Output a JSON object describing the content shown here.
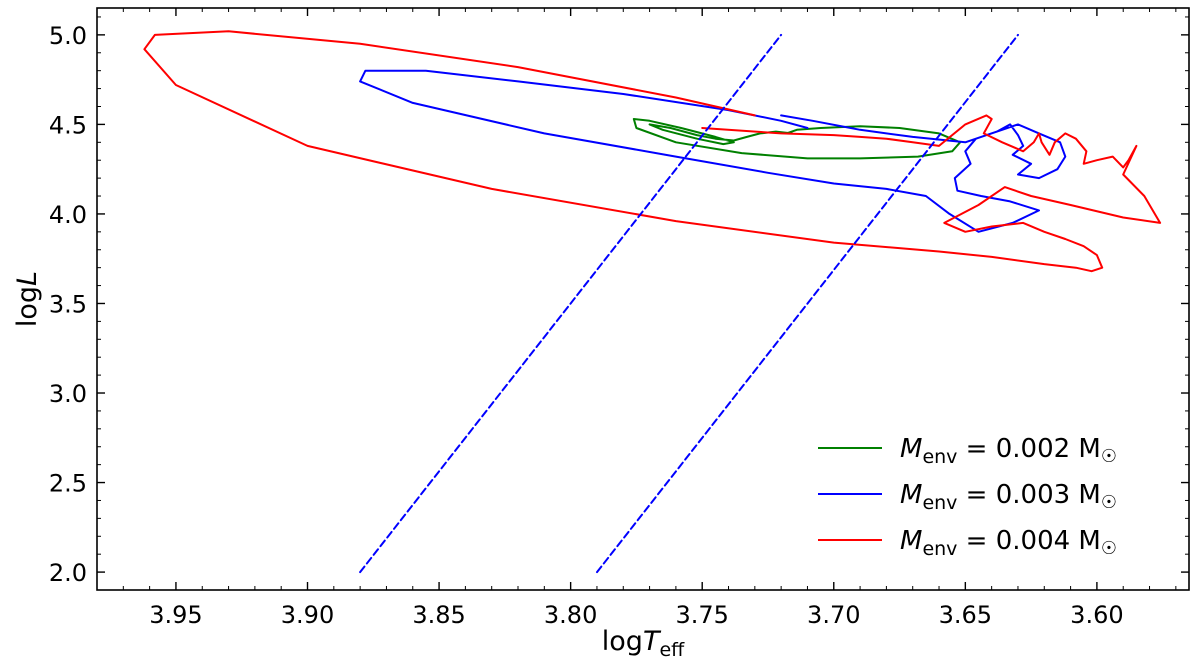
{
  "chart_data": {
    "type": "line",
    "xlabel": "log",
    "xlabel_var": "T",
    "xlabel_sub": "eff",
    "ylabel": "log",
    "ylabel_var": "L",
    "xlim": [
      3.98,
      3.565
    ],
    "ylim": [
      1.9,
      5.15
    ],
    "x_inverted": true,
    "x_ticks": [
      3.95,
      3.9,
      3.85,
      3.8,
      3.75,
      3.7,
      3.65,
      3.6
    ],
    "x_tick_labels": [
      "3.95",
      "3.90",
      "3.85",
      "3.80",
      "3.75",
      "3.70",
      "3.65",
      "3.60"
    ],
    "y_ticks": [
      2.0,
      2.5,
      3.0,
      3.5,
      4.0,
      4.5,
      5.0
    ],
    "y_tick_labels": [
      "2.0",
      "2.5",
      "3.0",
      "3.5",
      "4.0",
      "4.5",
      "5.0"
    ],
    "grid": false,
    "legend_placement": "bottom-right",
    "series": [
      {
        "name": "M_env = 0.002 M☉",
        "legend": {
          "var": "M",
          "sub": "env",
          "text": " = 0.002 M",
          "sym": "☉"
        },
        "color": "#008000",
        "style": "solid",
        "x": [
          3.718,
          3.714,
          3.705,
          3.69,
          3.675,
          3.66,
          3.652,
          3.655,
          3.668,
          3.69,
          3.71,
          3.735,
          3.76,
          3.775,
          3.776,
          3.77,
          3.758,
          3.745,
          3.738,
          3.742,
          3.752,
          3.765,
          3.77,
          3.762,
          3.752,
          3.745,
          3.738,
          3.733,
          3.728,
          3.722,
          3.716
        ],
        "y": [
          4.45,
          4.47,
          4.48,
          4.49,
          4.48,
          4.45,
          4.4,
          4.35,
          4.32,
          4.31,
          4.31,
          4.34,
          4.4,
          4.48,
          4.53,
          4.52,
          4.48,
          4.43,
          4.4,
          4.39,
          4.42,
          4.47,
          4.5,
          4.48,
          4.44,
          4.42,
          4.41,
          4.43,
          4.45,
          4.46,
          4.45
        ]
      },
      {
        "name": "M_env = 0.003 M☉",
        "legend": {
          "var": "M",
          "sub": "env",
          "text": " = 0.003 M",
          "sym": "☉"
        },
        "color": "#0000ff",
        "style": "solid",
        "x": [
          3.72,
          3.708,
          3.69,
          3.67,
          3.65,
          3.638,
          3.633,
          3.63,
          3.628,
          3.632,
          3.625,
          3.63,
          3.622,
          3.615,
          3.612,
          3.614,
          3.622,
          3.63,
          3.636,
          3.646,
          3.65,
          3.648,
          3.654,
          3.653,
          3.644,
          3.633,
          3.622,
          3.632,
          3.645,
          3.656,
          3.665,
          3.68,
          3.7,
          3.725,
          3.76,
          3.81,
          3.86,
          3.88,
          3.878,
          3.855,
          3.82,
          3.78,
          3.74,
          3.72,
          3.71
        ],
        "y": [
          4.55,
          4.52,
          4.47,
          4.43,
          4.4,
          4.46,
          4.5,
          4.44,
          4.38,
          4.33,
          4.28,
          4.22,
          4.2,
          4.25,
          4.32,
          4.4,
          4.45,
          4.5,
          4.47,
          4.42,
          4.35,
          4.28,
          4.2,
          4.13,
          4.1,
          4.07,
          4.02,
          3.95,
          3.9,
          4.0,
          4.1,
          4.14,
          4.17,
          4.23,
          4.32,
          4.45,
          4.62,
          4.74,
          4.8,
          4.8,
          4.74,
          4.67,
          4.58,
          4.52,
          4.48
        ]
      },
      {
        "name": "M_env = 0.004 M☉",
        "legend": {
          "var": "M",
          "sub": "env",
          "text": " = 0.004 M",
          "sym": "☉"
        },
        "color": "#ff0000",
        "style": "solid",
        "x": [
          3.75,
          3.72,
          3.7,
          3.69,
          3.68,
          3.67,
          3.66,
          3.65,
          3.642,
          3.64,
          3.643,
          3.636,
          3.628,
          3.624,
          3.622,
          3.621,
          3.618,
          3.616,
          3.612,
          3.608,
          3.604,
          3.605,
          3.6,
          3.594,
          3.59,
          3.588,
          3.585,
          3.59,
          3.582,
          3.578,
          3.576,
          3.59,
          3.61,
          3.625,
          3.635,
          3.645,
          3.658,
          3.65,
          3.64,
          3.628,
          3.62,
          3.612,
          3.605,
          3.6,
          3.598,
          3.602,
          3.608,
          3.62,
          3.64,
          3.66,
          3.7,
          3.76,
          3.83,
          3.9,
          3.95,
          3.962,
          3.958,
          3.93,
          3.88,
          3.82,
          3.76,
          3.73
        ],
        "y": [
          4.48,
          4.45,
          4.44,
          4.43,
          4.42,
          4.4,
          4.38,
          4.5,
          4.55,
          4.53,
          4.45,
          4.4,
          4.35,
          4.4,
          4.45,
          4.4,
          4.33,
          4.4,
          4.45,
          4.42,
          4.35,
          4.28,
          4.3,
          4.32,
          4.26,
          4.3,
          4.38,
          4.22,
          4.1,
          4.0,
          3.95,
          3.98,
          4.05,
          4.1,
          4.15,
          4.05,
          3.95,
          3.9,
          3.93,
          3.95,
          3.9,
          3.86,
          3.82,
          3.77,
          3.7,
          3.68,
          3.7,
          3.72,
          3.76,
          3.79,
          3.84,
          3.96,
          4.14,
          4.38,
          4.72,
          4.92,
          5.0,
          5.02,
          4.95,
          4.82,
          4.65,
          4.55
        ]
      },
      {
        "color": "#0000ff",
        "style": "dashed",
        "x": [
          3.88,
          3.72
        ],
        "y": [
          2.0,
          5.0
        ]
      },
      {
        "color": "#0000ff",
        "style": "dashed",
        "x": [
          3.79,
          3.63
        ],
        "y": [
          2.0,
          5.0
        ]
      }
    ]
  }
}
